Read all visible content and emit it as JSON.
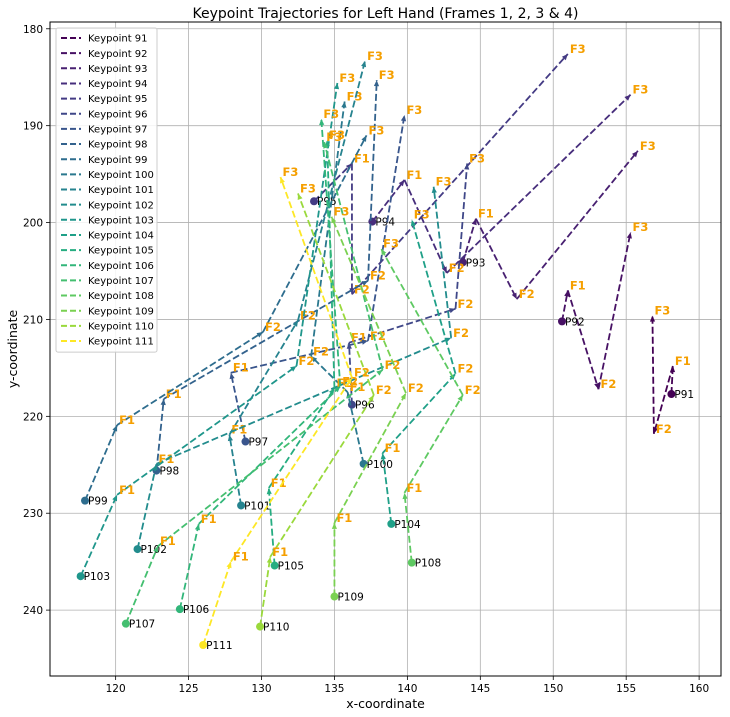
{
  "chart_data": {
    "type": "line",
    "title": "Keypoint Trajectories for Left Hand (Frames 1, 2, 3 & 4)",
    "xlabel": "x-coordinate",
    "ylabel": "y-coordinate",
    "xlim": [
      115.5,
      161.5
    ],
    "ylim": [
      246.8,
      179.3
    ],
    "y_inverted": true,
    "xticks": [
      120,
      125,
      130,
      135,
      140,
      145,
      150,
      155,
      160
    ],
    "yticks": [
      180,
      190,
      200,
      210,
      220,
      230,
      240
    ],
    "grid": true,
    "legend_position": "top-left",
    "frame_labels": [
      "F1",
      "F2",
      "F3"
    ],
    "frame_label_color": "#f59f00",
    "series": [
      {
        "name": "Keypoint 91",
        "label": "P91",
        "color": "#440154",
        "points": [
          [
            158.1,
            217.7
          ],
          [
            158.2,
            214.8
          ],
          [
            156.9,
            221.8
          ],
          [
            156.8,
            209.6
          ]
        ]
      },
      {
        "name": "Keypoint 92",
        "label": "P92",
        "color": "#471164",
        "points": [
          [
            150.6,
            210.2
          ],
          [
            151.0,
            207.0
          ],
          [
            153.1,
            217.2
          ],
          [
            155.3,
            201.0
          ]
        ]
      },
      {
        "name": "Keypoint 93",
        "label": "P93",
        "color": "#482071",
        "points": [
          [
            143.8,
            204.1
          ],
          [
            144.7,
            199.6
          ],
          [
            147.5,
            207.9
          ],
          [
            155.8,
            192.6
          ]
        ]
      },
      {
        "name": "Keypoint 94",
        "label": "P94",
        "color": "#472e7c",
        "points": [
          [
            137.6,
            199.9
          ],
          [
            139.8,
            195.6
          ],
          [
            142.7,
            205.2
          ],
          [
            155.3,
            186.8
          ]
        ]
      },
      {
        "name": "Keypoint 95",
        "label": "P95",
        "color": "#443b84",
        "points": [
          [
            133.6,
            197.8
          ],
          [
            136.2,
            193.9
          ],
          [
            136.2,
            207.4
          ],
          [
            151.0,
            182.6
          ]
        ]
      },
      {
        "name": "Keypoint 96",
        "label": "P96",
        "color": "#3f4788",
        "points": [
          [
            136.2,
            218.8
          ],
          [
            136.0,
            212.4
          ],
          [
            143.3,
            208.9
          ],
          [
            144.1,
            193.9
          ]
        ]
      },
      {
        "name": "Keypoint 97",
        "label": "P97",
        "color": "#39558c",
        "points": [
          [
            128.9,
            222.6
          ],
          [
            127.9,
            215.5
          ],
          [
            137.3,
            212.2
          ],
          [
            139.8,
            188.9
          ]
        ]
      },
      {
        "name": "Keypoint 98",
        "label": "P98",
        "color": "#33628d",
        "points": [
          [
            122.8,
            225.6
          ],
          [
            123.3,
            218.2
          ],
          [
            137.3,
            206.0
          ],
          [
            137.9,
            185.3
          ]
        ]
      },
      {
        "name": "Keypoint 99",
        "label": "P99",
        "color": "#2e6d8e",
        "points": [
          [
            117.9,
            228.7
          ],
          [
            120.1,
            220.9
          ],
          [
            130.1,
            211.3
          ],
          [
            137.2,
            191.0
          ]
        ]
      },
      {
        "name": "Keypoint 100",
        "label": "P100",
        "color": "#2a788e",
        "points": [
          [
            137.0,
            224.9
          ],
          [
            135.9,
            217.5
          ],
          [
            133.4,
            213.8
          ],
          [
            135.7,
            187.5
          ]
        ]
      },
      {
        "name": "Keypoint 101",
        "label": "P101",
        "color": "#26838f",
        "points": [
          [
            128.6,
            229.2
          ],
          [
            127.8,
            221.9
          ],
          [
            132.5,
            210.1
          ],
          [
            137.1,
            183.3
          ]
        ]
      },
      {
        "name": "Keypoint 102",
        "label": "P102",
        "color": "#228c8d",
        "points": [
          [
            121.5,
            233.7
          ],
          [
            122.8,
            224.9
          ],
          [
            143.0,
            211.9
          ],
          [
            141.8,
            196.3
          ]
        ]
      },
      {
        "name": "Keypoint 103",
        "label": "P103",
        "color": "#1f968b",
        "points": [
          [
            117.6,
            236.5
          ],
          [
            120.1,
            228.1
          ],
          [
            132.4,
            214.8
          ],
          [
            135.2,
            185.6
          ]
        ]
      },
      {
        "name": "Keypoint 104",
        "label": "P104",
        "color": "#1fa088",
        "points": [
          [
            138.9,
            231.1
          ],
          [
            138.3,
            223.8
          ],
          [
            143.3,
            215.6
          ],
          [
            140.3,
            199.7
          ]
        ]
      },
      {
        "name": "Keypoint 105",
        "label": "P105",
        "color": "#26ad81",
        "points": [
          [
            130.9,
            235.4
          ],
          [
            130.5,
            227.4
          ],
          [
            135.0,
            217.1
          ],
          [
            134.5,
            191.5
          ]
        ]
      },
      {
        "name": "Keypoint 106",
        "label": "P106",
        "color": "#32b67a",
        "points": [
          [
            124.4,
            239.9
          ],
          [
            125.7,
            231.1
          ],
          [
            135.4,
            216.9
          ],
          [
            134.1,
            189.3
          ]
        ]
      },
      {
        "name": "Keypoint 107",
        "label": "P107",
        "color": "#44bf70",
        "points": [
          [
            120.7,
            241.4
          ],
          [
            122.9,
            233.4
          ],
          [
            138.3,
            215.2
          ],
          [
            134.3,
            191.7
          ]
        ]
      },
      {
        "name": "Keypoint 108",
        "label": "P108",
        "color": "#5ec962",
        "points": [
          [
            140.3,
            235.1
          ],
          [
            139.8,
            227.9
          ],
          [
            143.8,
            217.8
          ],
          [
            138.2,
            202.7
          ]
        ]
      },
      {
        "name": "Keypoint 109",
        "label": "P109",
        "color": "#7ad151",
        "points": [
          [
            135.0,
            238.6
          ],
          [
            135.0,
            231.0
          ],
          [
            139.9,
            217.6
          ],
          [
            134.8,
            199.4
          ]
        ]
      },
      {
        "name": "Keypoint 110",
        "label": "P110",
        "color": "#9ad93c",
        "points": [
          [
            129.9,
            241.7
          ],
          [
            130.6,
            234.5
          ],
          [
            137.7,
            217.8
          ],
          [
            132.5,
            197.0
          ]
        ]
      },
      {
        "name": "Keypoint 111",
        "label": "P111",
        "color": "#fde725",
        "points": [
          [
            126.0,
            243.6
          ],
          [
            127.9,
            235.0
          ],
          [
            136.2,
            216.0
          ],
          [
            131.3,
            195.3
          ]
        ]
      }
    ]
  }
}
